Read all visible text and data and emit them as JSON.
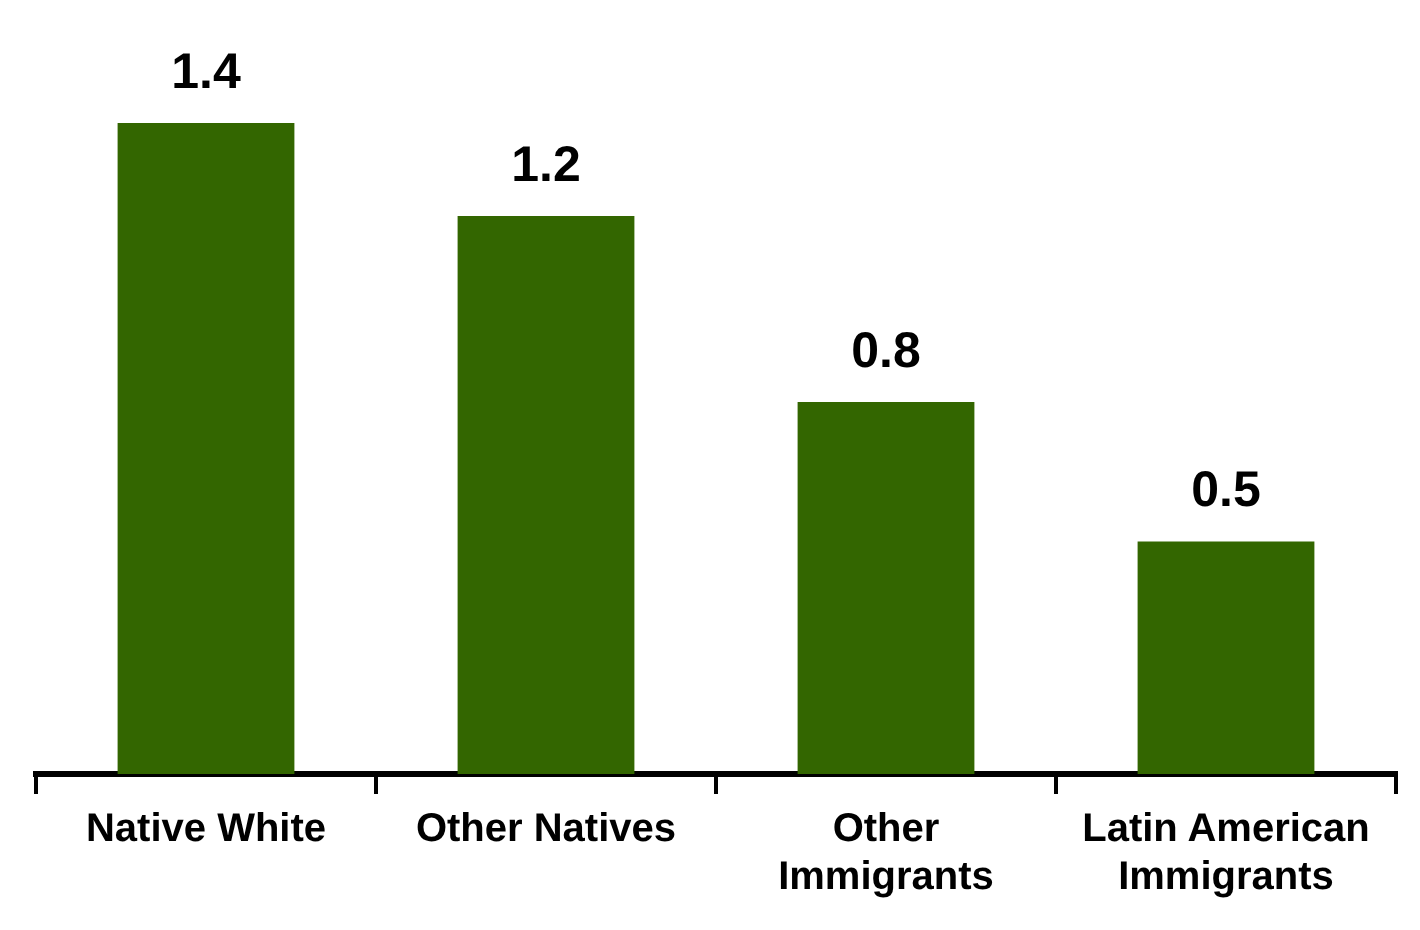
{
  "chart_data": {
    "type": "bar",
    "categories": [
      "Native White",
      "Other Natives",
      "Other Immigrants",
      "Latin American Immigrants"
    ],
    "values": [
      1.4,
      1.2,
      0.8,
      0.5
    ],
    "color": "#336600",
    "data_labels": true,
    "grid": false,
    "legend": false
  }
}
